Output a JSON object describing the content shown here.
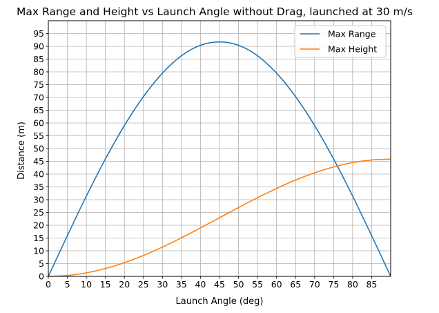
{
  "chart_data": {
    "type": "line",
    "title": "Max Range and Height vs Launch Angle without Drag, launched at 30 m/s",
    "xlabel": "Launch Angle (deg)",
    "ylabel": "Distance (m)",
    "xlim": [
      0,
      90
    ],
    "ylim": [
      0,
      100
    ],
    "xticks": [
      0,
      5,
      10,
      15,
      20,
      25,
      30,
      35,
      40,
      45,
      50,
      55,
      60,
      65,
      70,
      75,
      80,
      85
    ],
    "yticks": [
      0,
      5,
      10,
      15,
      20,
      25,
      30,
      35,
      40,
      45,
      50,
      55,
      60,
      65,
      70,
      75,
      80,
      85,
      90,
      95
    ],
    "grid": true,
    "legend_position": "top-right",
    "x": [
      0,
      5,
      10,
      15,
      20,
      25,
      30,
      35,
      40,
      45,
      50,
      55,
      60,
      65,
      70,
      75,
      80,
      85,
      90
    ],
    "series": [
      {
        "name": "Max Range",
        "color": "#1f77b4",
        "values": [
          0,
          15.9,
          31.4,
          45.9,
          59.0,
          70.3,
          79.5,
          86.3,
          90.4,
          91.7,
          90.4,
          86.3,
          79.5,
          70.3,
          59.0,
          45.9,
          31.4,
          15.9,
          0
        ]
      },
      {
        "name": "Max Height",
        "color": "#ff7f0e",
        "values": [
          0,
          0.35,
          1.39,
          3.07,
          5.37,
          8.18,
          11.47,
          15.08,
          18.96,
          22.94,
          26.92,
          30.8,
          34.4,
          37.69,
          40.51,
          42.8,
          44.49,
          45.53,
          45.87
        ]
      }
    ]
  }
}
